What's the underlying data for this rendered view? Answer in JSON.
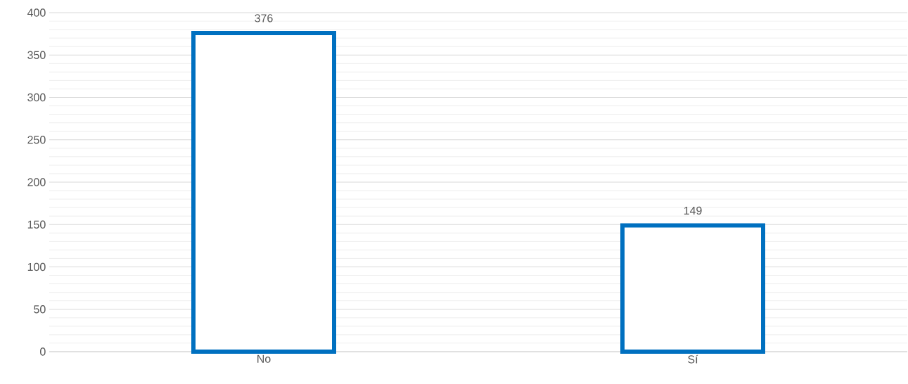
{
  "chart_data": {
    "type": "bar",
    "categories": [
      "No",
      "Sí"
    ],
    "values": [
      376,
      149
    ],
    "color": "#0070c0",
    "ylim": [
      0,
      400
    ],
    "yticks": [
      0,
      50,
      100,
      150,
      200,
      250,
      300,
      350,
      400
    ],
    "grid": "y",
    "data_labels": true
  }
}
